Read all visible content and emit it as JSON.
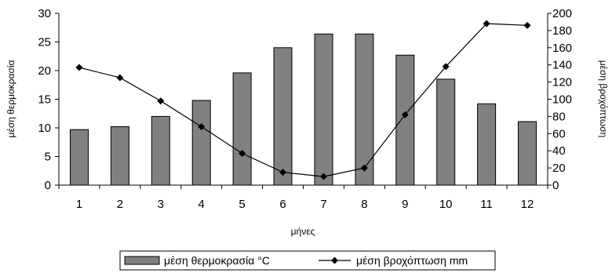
{
  "chart_data": {
    "type": "bar",
    "categories": [
      "1",
      "2",
      "3",
      "4",
      "5",
      "6",
      "7",
      "8",
      "9",
      "10",
      "11",
      "12"
    ],
    "series": [
      {
        "name": "μέση θερμοκρασία °C",
        "type": "bar",
        "axis": "left",
        "color": "#808080",
        "values": [
          9.7,
          10.2,
          12.0,
          14.8,
          19.6,
          24.0,
          26.4,
          26.4,
          22.7,
          18.5,
          14.2,
          11.1
        ]
      },
      {
        "name": "μέση βροχόπτωση mm",
        "type": "line",
        "axis": "right",
        "color": "#000000",
        "marker": "diamond",
        "values": [
          137,
          125,
          98,
          68,
          37,
          15,
          10,
          20,
          82,
          138,
          188,
          186
        ]
      }
    ],
    "xlabel": "μήνες",
    "ylabel": "μέση θερμοκρασία",
    "y2label": "μέση βροχόπτωση",
    "ylim": [
      0,
      30
    ],
    "y2lim": [
      0,
      200
    ],
    "yticks": [
      "0",
      "5",
      "10",
      "15",
      "20",
      "25",
      "30"
    ],
    "y2ticks": [
      "0",
      "20",
      "40",
      "60",
      "80",
      "100",
      "120",
      "140",
      "160",
      "180",
      "200"
    ],
    "grid": false,
    "legend_position": "bottom"
  }
}
